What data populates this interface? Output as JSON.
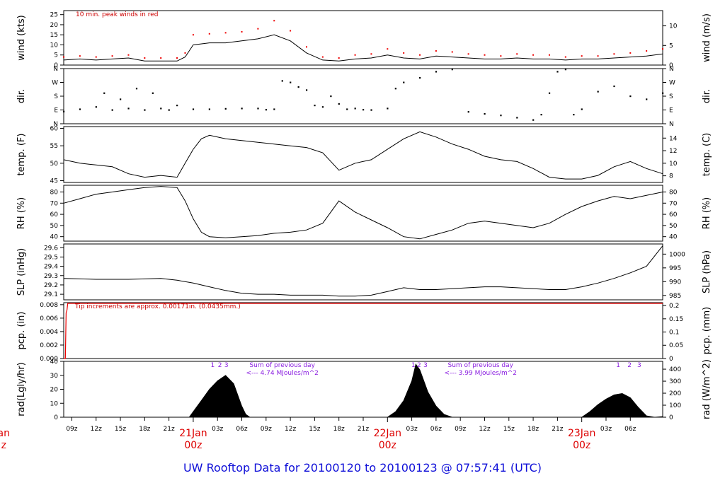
{
  "page": {
    "title": "UW Rooftop Data for 20100120  to  20100123 @ 07:57:41  (UTC)"
  },
  "colors": {
    "title": "#1010d8",
    "peak": "#ee0000",
    "annotation": "#cc0000",
    "solar_note": "#8a1ee0",
    "date_label": "#dd0000"
  },
  "chart_data": [
    {
      "type": "line",
      "name": "wind",
      "ylabel_left": "wind (kts)",
      "ylabel_right": "wind (m/s)",
      "ylim": [
        0,
        27
      ],
      "yticks_left": [
        0,
        5,
        10,
        15,
        20,
        25
      ],
      "yticks_right": [
        {
          "label": "0",
          "v": 0
        },
        {
          "label": "5",
          "v": 9.72
        },
        {
          "label": "10",
          "v": 19.44
        }
      ],
      "annotation": "10 min. peak winds in red",
      "x": [
        0,
        2,
        4,
        6,
        8,
        10,
        12,
        14,
        15,
        16,
        18,
        20,
        22,
        24,
        26,
        28,
        30,
        32,
        34,
        36,
        38,
        40,
        42,
        44,
        46,
        48,
        50,
        52,
        54,
        56,
        58,
        60,
        62,
        64,
        66,
        68,
        70,
        72,
        74
      ],
      "y": [
        2.5,
        3,
        2.5,
        3,
        3.5,
        2,
        2,
        2,
        4,
        10,
        11,
        11,
        12,
        13,
        15,
        12,
        6,
        2.5,
        2,
        3,
        3.5,
        5,
        3.5,
        3,
        4.5,
        4,
        3.5,
        3,
        3,
        3.5,
        3,
        3,
        2.5,
        3,
        3,
        3.5,
        4,
        4.5,
        5.5
      ],
      "peak": [
        4,
        4.5,
        4,
        4.5,
        5,
        3.5,
        3.5,
        3.5,
        6,
        15,
        15.5,
        16,
        16.5,
        18,
        22,
        17,
        9,
        4,
        3.5,
        5,
        5.5,
        8,
        6,
        5,
        7,
        6.5,
        5.5,
        5,
        4.5,
        5.5,
        5,
        5,
        4,
        4.5,
        4.5,
        5.5,
        6,
        7,
        8
      ]
    },
    {
      "type": "scatter",
      "name": "dir",
      "ylabel_left": "dir.",
      "ylabel_right": "dir.",
      "ylim": [
        0,
        360
      ],
      "yticks_left": [
        {
          "label": "N",
          "v": 0
        },
        {
          "label": "E",
          "v": 90
        },
        {
          "label": "S",
          "v": 180
        },
        {
          "label": "W",
          "v": 270
        },
        {
          "label": "N",
          "v": 360
        }
      ],
      "yticks_right": [
        {
          "label": "N",
          "v": 0
        },
        {
          "label": "E",
          "v": 90
        },
        {
          "label": "S",
          "v": 180
        },
        {
          "label": "W",
          "v": 270
        },
        {
          "label": "N",
          "v": 360
        }
      ],
      "x": [
        0,
        2,
        4,
        5,
        6,
        7,
        8,
        9,
        10,
        11,
        12,
        13,
        14,
        16,
        18,
        20,
        22,
        24,
        25,
        26,
        27,
        28,
        29,
        30,
        31,
        32,
        33,
        34,
        35,
        36,
        37,
        38,
        40,
        41,
        42,
        44,
        46,
        48,
        50,
        52,
        54,
        56,
        58,
        59,
        60,
        61,
        62,
        63,
        64,
        66,
        68,
        70,
        72,
        74
      ],
      "y": [
        80,
        95,
        110,
        200,
        90,
        160,
        100,
        230,
        90,
        200,
        100,
        90,
        120,
        95,
        95,
        98,
        100,
        100,
        92,
        95,
        280,
        270,
        240,
        220,
        120,
        110,
        180,
        130,
        95,
        100,
        92,
        90,
        100,
        230,
        270,
        300,
        340,
        355,
        78,
        65,
        55,
        40,
        25,
        60,
        200,
        340,
        355,
        60,
        95,
        210,
        245,
        180,
        160,
        200
      ]
    },
    {
      "type": "line",
      "name": "temp",
      "ylabel_left": "temp. (F)",
      "ylabel_right": "temp. (C)",
      "ylim": [
        44.5,
        60.5
      ],
      "yticks_left": [
        45,
        50,
        55,
        60
      ],
      "yticks_right": [
        {
          "label": "8",
          "v": 46.4
        },
        {
          "label": "10",
          "v": 50
        },
        {
          "label": "12",
          "v": 53.6
        },
        {
          "label": "14",
          "v": 57.2
        }
      ],
      "x": [
        0,
        2,
        4,
        6,
        8,
        10,
        12,
        14,
        15,
        16,
        17,
        18,
        20,
        22,
        24,
        26,
        28,
        30,
        32,
        34,
        36,
        38,
        40,
        42,
        44,
        46,
        48,
        50,
        52,
        54,
        56,
        58,
        60,
        62,
        64,
        66,
        68,
        70,
        72,
        74
      ],
      "y": [
        51,
        50,
        49.5,
        49,
        47,
        46,
        46.5,
        46,
        50,
        54,
        57,
        58,
        57,
        56.5,
        56,
        55.5,
        55,
        54.5,
        53,
        48,
        50,
        51,
        54,
        57,
        59,
        57.5,
        55.5,
        54,
        52,
        51,
        50.5,
        48.5,
        46,
        45.5,
        45.5,
        46.5,
        49,
        50.5,
        48.5,
        47
      ]
    },
    {
      "type": "line",
      "name": "rh",
      "ylabel_left": "RH (%)",
      "ylabel_right": "RH (%)",
      "ylim": [
        36,
        86
      ],
      "yticks_left": [
        40,
        50,
        60,
        70,
        80
      ],
      "yticks_right": [
        {
          "label": "40",
          "v": 40
        },
        {
          "label": "50",
          "v": 50
        },
        {
          "label": "60",
          "v": 60
        },
        {
          "label": "70",
          "v": 70
        },
        {
          "label": "80",
          "v": 80
        }
      ],
      "x": [
        0,
        2,
        4,
        6,
        8,
        10,
        12,
        14,
        15,
        16,
        17,
        18,
        20,
        22,
        24,
        26,
        28,
        30,
        32,
        34,
        36,
        38,
        40,
        42,
        44,
        46,
        48,
        50,
        52,
        54,
        56,
        58,
        60,
        62,
        64,
        66,
        68,
        70,
        72,
        74
      ],
      "y": [
        70,
        74,
        78,
        80,
        82,
        84,
        85,
        84,
        72,
        56,
        44,
        40,
        39,
        40,
        41,
        43,
        44,
        46,
        52,
        72,
        62,
        55,
        48,
        40,
        38,
        42,
        46,
        52,
        54,
        52,
        50,
        48,
        52,
        60,
        67,
        72,
        76,
        74,
        77,
        80
      ]
    },
    {
      "type": "line",
      "name": "slp",
      "ylabel_left": "SLP (inHg)",
      "ylabel_right": "SLP (hPa)",
      "ylim": [
        29.04,
        29.64
      ],
      "yticks_left": [
        {
          "label": "29.1",
          "v": 29.1
        },
        {
          "label": "29.2",
          "v": 29.2
        },
        {
          "label": "29.3",
          "v": 29.3
        },
        {
          "label": "29.4",
          "v": 29.4
        },
        {
          "label": "29.5",
          "v": 29.5
        },
        {
          "label": "29.6",
          "v": 29.6
        }
      ],
      "yticks_right": [
        {
          "label": "985",
          "v": 29.087
        },
        {
          "label": "990",
          "v": 29.235
        },
        {
          "label": "995",
          "v": 29.383
        },
        {
          "label": "1000",
          "v": 29.531
        }
      ],
      "x": [
        0,
        4,
        8,
        12,
        14,
        16,
        18,
        20,
        22,
        24,
        26,
        28,
        30,
        32,
        34,
        36,
        38,
        40,
        42,
        44,
        46,
        48,
        50,
        52,
        54,
        56,
        58,
        60,
        62,
        64,
        66,
        68,
        70,
        72,
        74
      ],
      "y": [
        29.27,
        29.26,
        29.26,
        29.27,
        29.25,
        29.22,
        29.18,
        29.14,
        29.11,
        29.1,
        29.1,
        29.09,
        29.09,
        29.09,
        29.08,
        29.08,
        29.09,
        29.13,
        29.17,
        29.15,
        29.15,
        29.16,
        29.17,
        29.18,
        29.18,
        29.17,
        29.16,
        29.15,
        29.15,
        29.18,
        29.22,
        29.27,
        29.33,
        29.4,
        29.62
      ]
    },
    {
      "type": "area",
      "name": "pcp",
      "ylabel_left": "pcp. (in)",
      "ylabel_right": "pcp. (mm)",
      "ylim": [
        0,
        0.0083
      ],
      "yticks_left": [
        {
          "label": "0.000",
          "v": 0
        },
        {
          "label": "0.002",
          "v": 0.002
        },
        {
          "label": "0.004",
          "v": 0.004
        },
        {
          "label": "0.006",
          "v": 0.006
        },
        {
          "label": "0.008",
          "v": 0.008
        }
      ],
      "yticks_right": [
        {
          "label": "0",
          "v": 0
        },
        {
          "label": "0.05",
          "v": 0.00197
        },
        {
          "label": "0.1",
          "v": 0.00394
        },
        {
          "label": "0.15",
          "v": 0.0059
        },
        {
          "label": "0.2",
          "v": 0.00787
        }
      ],
      "annotation": "Tip increments are approx. 0.00171in. (0.0435mm.)",
      "x": [
        0,
        0.2,
        0.3,
        0.4,
        0.5,
        74
      ],
      "y": [
        0,
        0,
        0.0068,
        0.0072,
        0.0082,
        0.0082
      ]
    },
    {
      "type": "area",
      "name": "rad",
      "ylabel_left": "rad(Lgly/hr)",
      "ylabel_right": "rad (W/m^2)",
      "ylim": [
        0,
        40
      ],
      "yticks_left": [
        {
          "label": "0",
          "v": 0
        },
        {
          "label": "10",
          "v": 10
        },
        {
          "label": "20",
          "v": 20
        },
        {
          "label": "30",
          "v": 30
        },
        {
          "label": "40",
          "v": 40
        }
      ],
      "yticks_right": [
        {
          "label": "0",
          "v": 0
        },
        {
          "label": "100",
          "v": 8.6
        },
        {
          "label": "200",
          "v": 17.2
        },
        {
          "label": "300",
          "v": 25.8
        },
        {
          "label": "400",
          "v": 34.4
        }
      ],
      "x": [
        0,
        15.5,
        16,
        17,
        18,
        19,
        20,
        21,
        22,
        22.5,
        23,
        40,
        41,
        42,
        43,
        43.5,
        44,
        45,
        46,
        47,
        48,
        49,
        64,
        65,
        66,
        67,
        68,
        69,
        70,
        71,
        72,
        73,
        74
      ],
      "y": [
        0,
        0,
        4,
        12,
        20,
        26,
        30,
        24,
        8,
        2,
        0,
        0,
        4,
        12,
        26,
        38,
        34,
        18,
        8,
        2,
        0,
        0,
        0,
        4,
        9,
        13,
        16,
        17,
        14,
        7,
        1,
        0,
        0.5
      ],
      "markers": [
        {
          "label": "1",
          "x": 18.4
        },
        {
          "label": "2",
          "x": 19.3
        },
        {
          "label": "3",
          "x": 20.1
        },
        {
          "label": "1",
          "x": 43.2
        },
        {
          "label": "2",
          "x": 43.9
        },
        {
          "label": "3",
          "x": 44.7
        },
        {
          "label": "1",
          "x": 68.5
        },
        {
          "label": "2",
          "x": 69.9
        },
        {
          "label": "3",
          "x": 71.1
        }
      ],
      "notes": [
        {
          "line1": "Sum of previous day",
          "line2": "<--- 4.74 MJoules/m^2",
          "x": 27
        },
        {
          "line1": "Sum of previous day",
          "line2": "<--- 3.99 MJoules/m^2",
          "x": 51.5
        }
      ]
    }
  ],
  "x_axis": {
    "xlim": [
      0,
      74
    ],
    "ticks": [
      {
        "label": "09z",
        "x": 1
      },
      {
        "label": "12z",
        "x": 4
      },
      {
        "label": "15z",
        "x": 7
      },
      {
        "label": "18z",
        "x": 10
      },
      {
        "label": "21z",
        "x": 13
      },
      {
        "label": "03z",
        "x": 19
      },
      {
        "label": "06z",
        "x": 22
      },
      {
        "label": "09z",
        "x": 25
      },
      {
        "label": "12z",
        "x": 28
      },
      {
        "label": "15z",
        "x": 31
      },
      {
        "label": "18z",
        "x": 34
      },
      {
        "label": "21z",
        "x": 37
      },
      {
        "label": "03z",
        "x": 43
      },
      {
        "label": "06z",
        "x": 46
      },
      {
        "label": "09z",
        "x": 49
      },
      {
        "label": "12z",
        "x": 52
      },
      {
        "label": "15z",
        "x": 55
      },
      {
        "label": "18z",
        "x": 58
      },
      {
        "label": "21z",
        "x": 61
      },
      {
        "label": "03z",
        "x": 67
      },
      {
        "label": "06z",
        "x": 70
      }
    ],
    "date_labels": [
      {
        "line1": "21Jan",
        "line2": "00z",
        "x": 16
      },
      {
        "line1": "22Jan",
        "line2": "00z",
        "x": 40
      },
      {
        "line1": "23Jan",
        "line2": "00z",
        "x": 64
      }
    ],
    "edge_label": {
      "line1": "Jan",
      "line2": "z"
    }
  }
}
